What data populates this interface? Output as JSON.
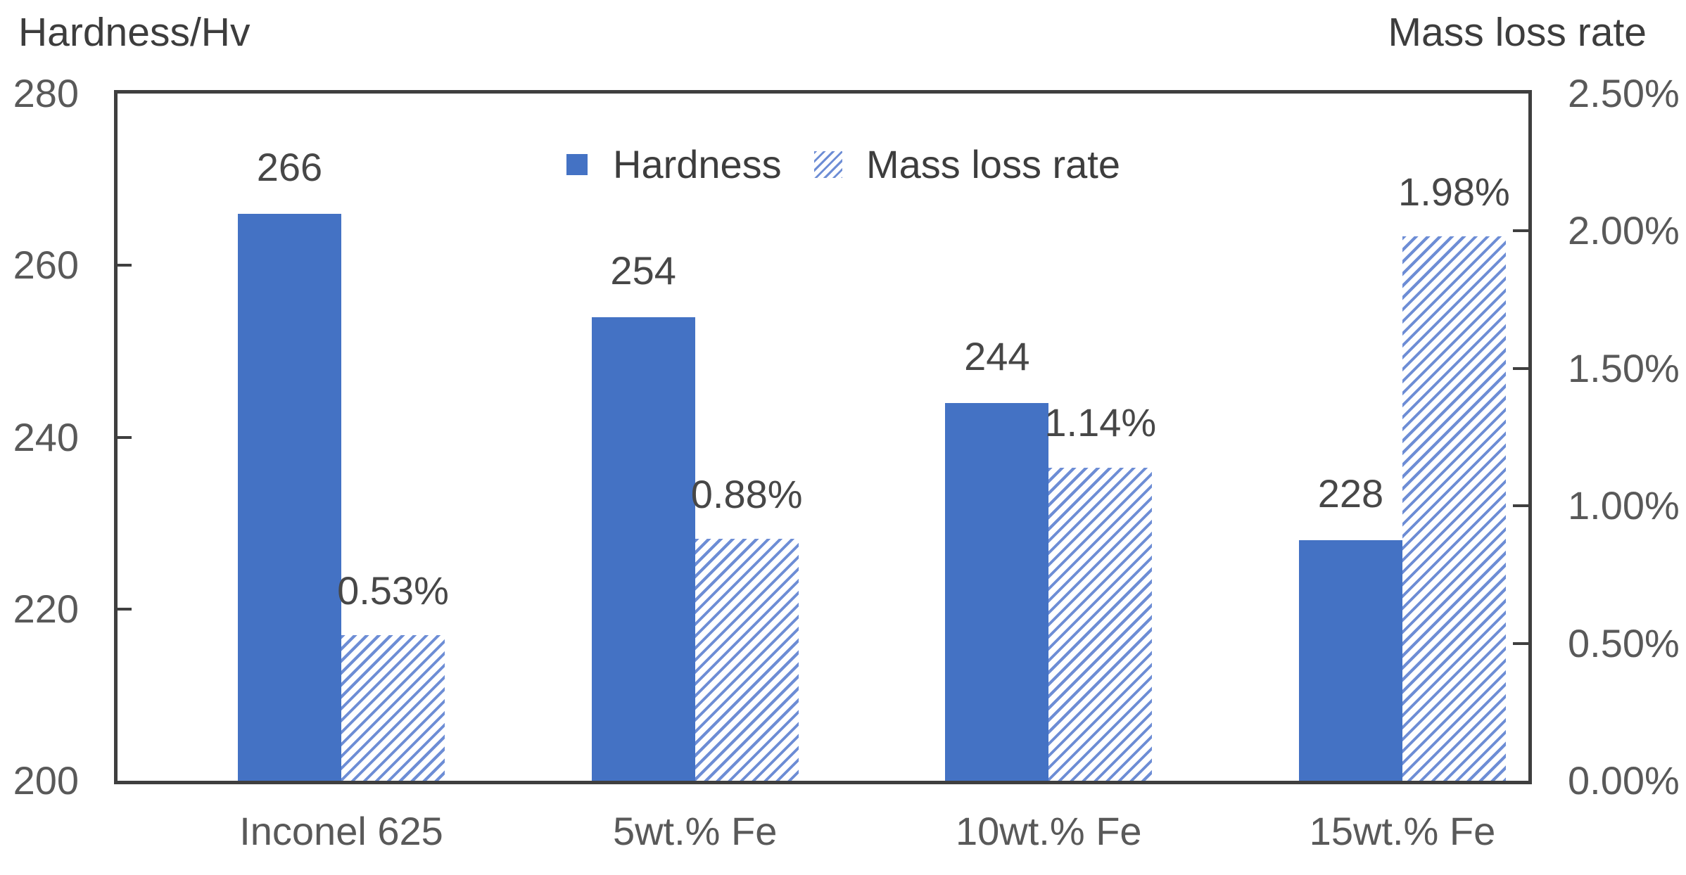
{
  "chart_data": {
    "type": "bar",
    "subtype": "dual-axis-clustered",
    "grid": false,
    "categories": [
      "Inconel 625",
      "5wt.% Fe",
      "10wt.% Fe",
      "15wt.% Fe"
    ],
    "series": [
      {
        "name": "Hardness",
        "axis": "left",
        "pattern": "solid",
        "values": [
          266,
          254,
          244,
          228
        ],
        "data_labels": [
          "266",
          "254",
          "244",
          "228"
        ]
      },
      {
        "name": "Mass loss rate",
        "axis": "right",
        "pattern": "hatched",
        "values": [
          0.53,
          0.88,
          1.14,
          1.98
        ],
        "data_labels": [
          "0.53%",
          "0.88%",
          "1.14%",
          "1.98%"
        ]
      }
    ],
    "left_axis": {
      "title": "Hardness/Hv",
      "min": 200,
      "max": 280,
      "tick_values": [
        280,
        260,
        240,
        220,
        200
      ],
      "tick_labels": [
        "280",
        "260",
        "240",
        "220",
        "200"
      ]
    },
    "right_axis": {
      "title": "Mass loss rate",
      "min": 0,
      "max": 2.5,
      "tick_values": [
        2.5,
        2.0,
        1.5,
        1.0,
        0.5,
        0.0
      ],
      "tick_labels": [
        "2.50%",
        "2.00%",
        "1.50%",
        "1.00%",
        "0.50%",
        "0.00%"
      ]
    },
    "legend": {
      "position": "top-center",
      "items": [
        "Hardness",
        "Mass loss rate"
      ]
    },
    "colors": {
      "bar_solid": "#4472C4",
      "hatch_stripe": "#6d8dd5",
      "axis_line": "#3F3F3F",
      "tick_text": "#595959",
      "data_label_text": "#474747",
      "title_text": "#3d3d3d",
      "background": "#ffffff"
    }
  }
}
